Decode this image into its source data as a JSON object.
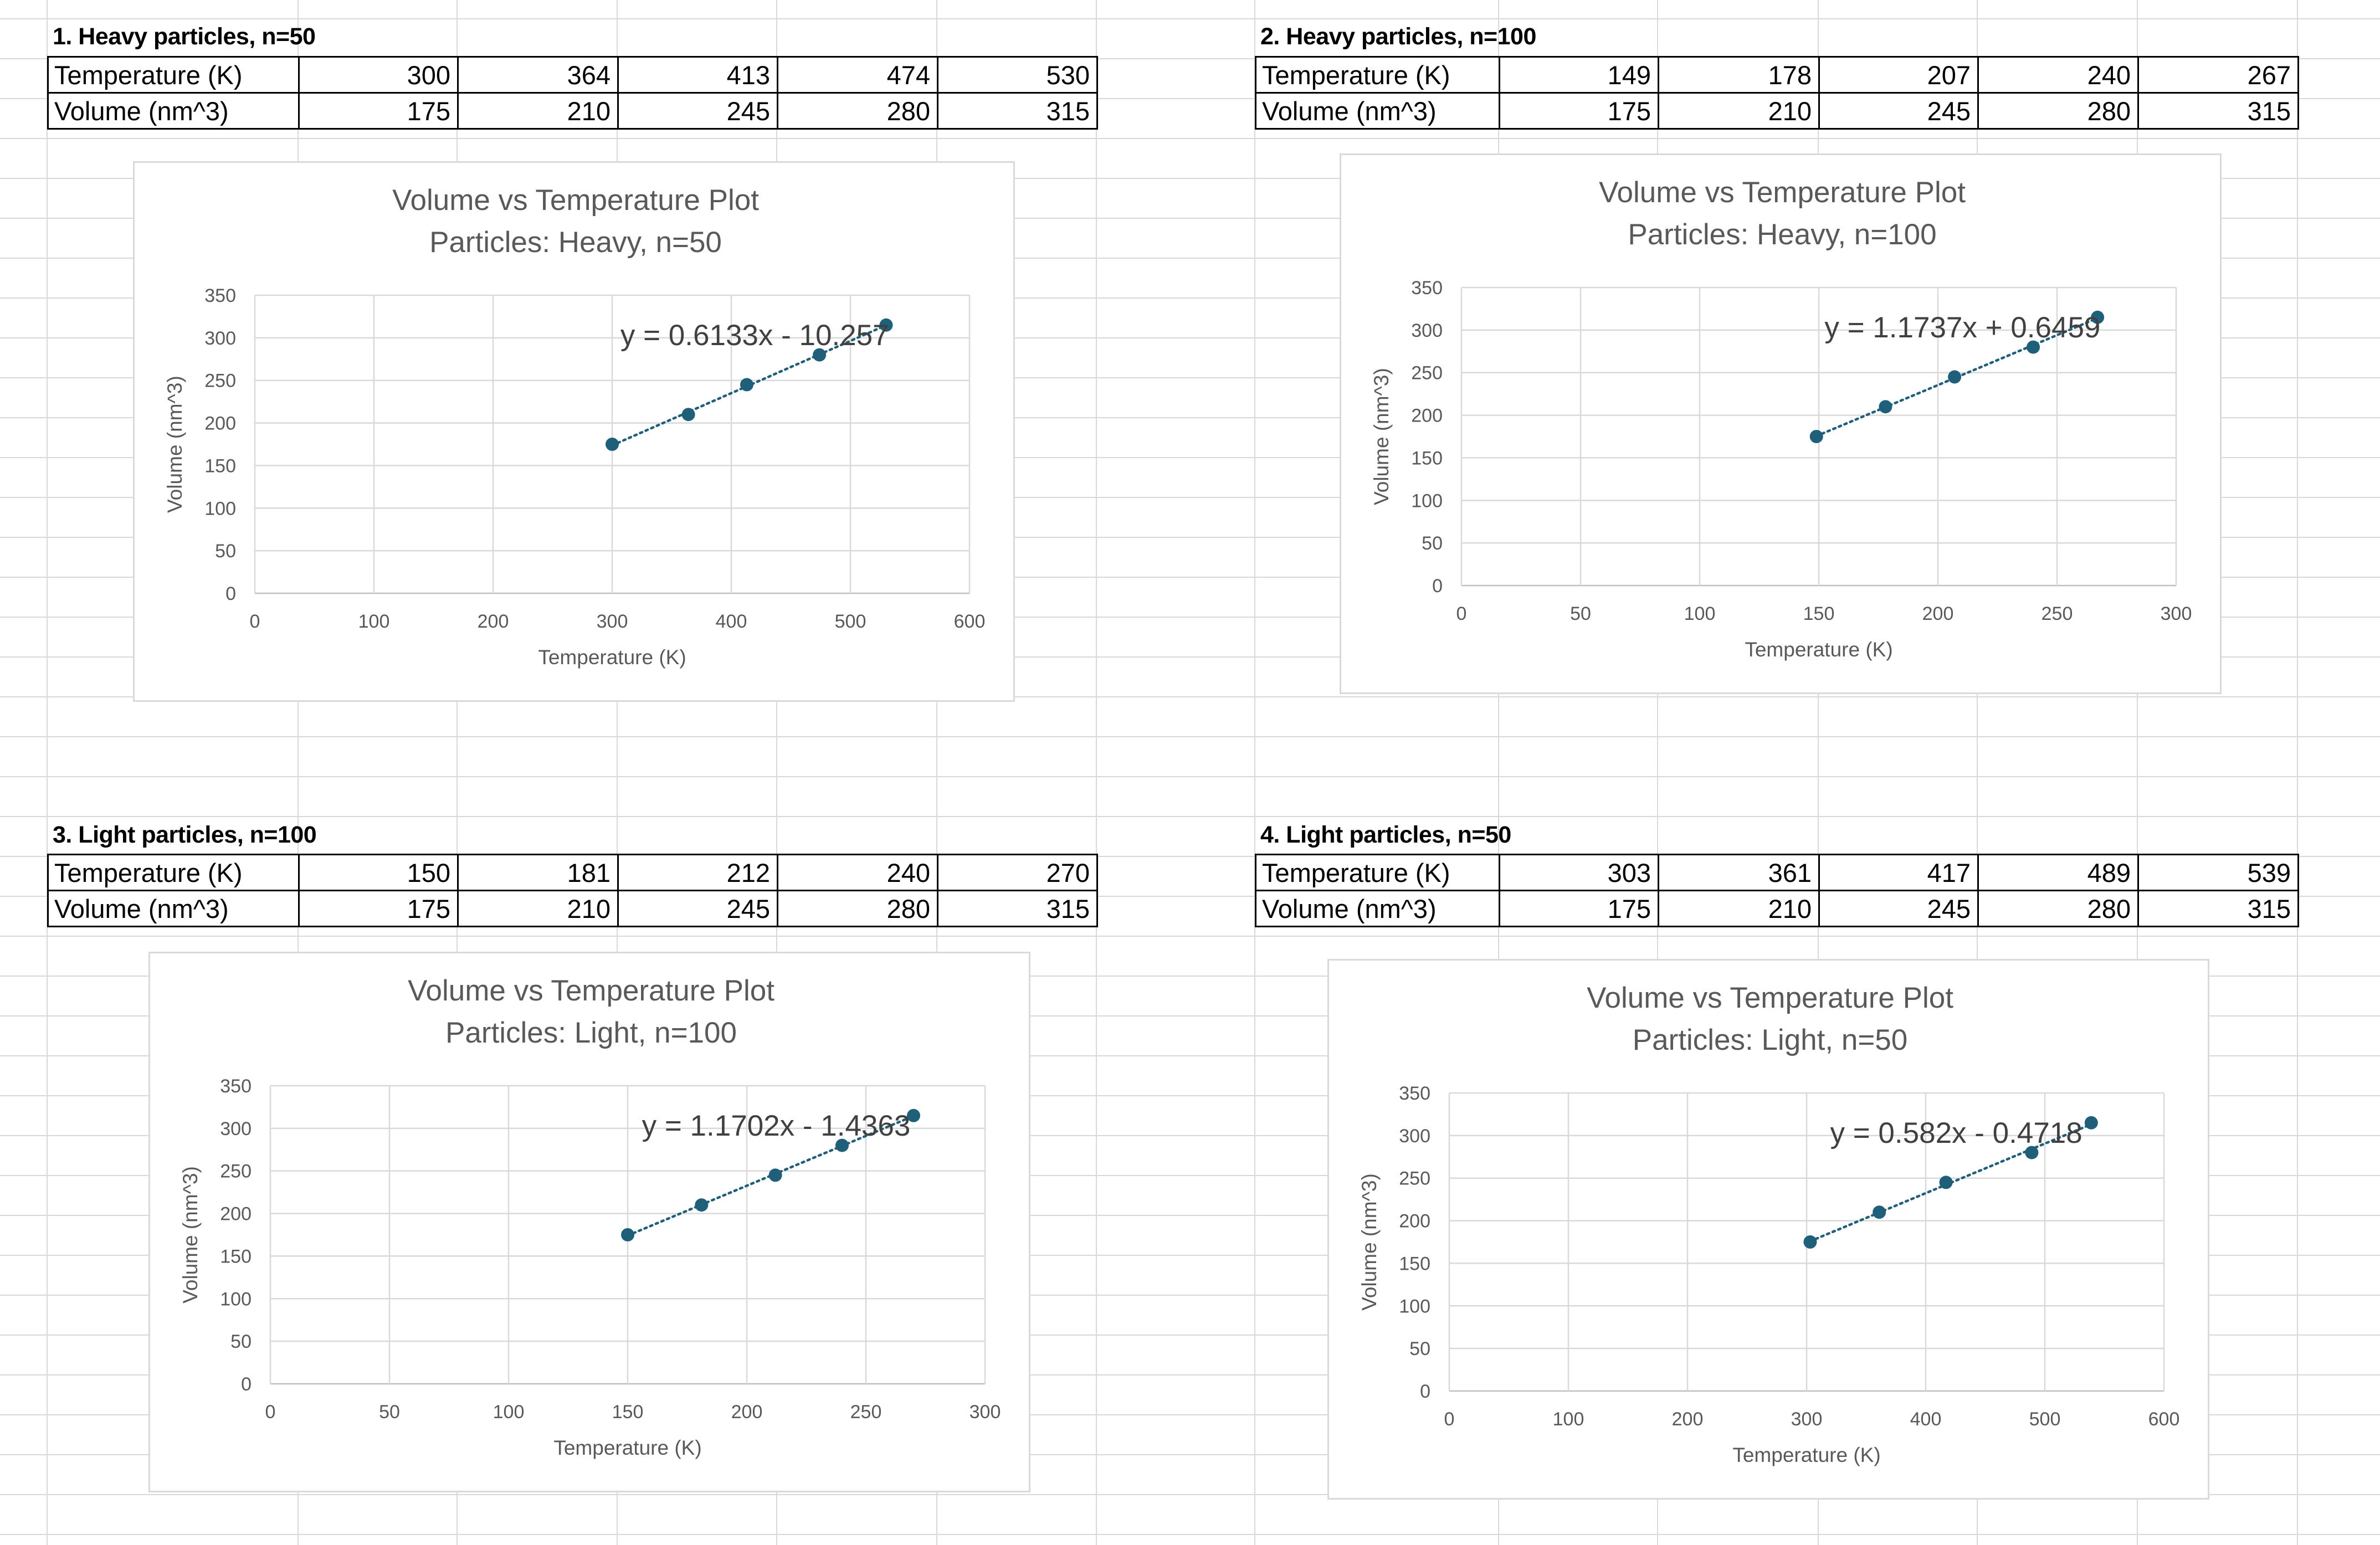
{
  "sections": [
    {
      "title": "1. Heavy particles, n=50",
      "table": {
        "rows": [
          {
            "label": "Temperature (K)",
            "values": [
              "300",
              "364",
              "413",
              "474",
              "530"
            ]
          },
          {
            "label": "Volume (nm^3)",
            "values": [
              "175",
              "210",
              "245",
              "280",
              "315"
            ]
          }
        ]
      },
      "chart_data": {
        "type": "scatter",
        "title": "Volume vs Temperature Plot",
        "subtitle": "Particles: Heavy, n=50",
        "xlabel": "Temperature (K)",
        "ylabel": "Volume (nm^3)",
        "x": [
          300,
          364,
          413,
          474,
          530
        ],
        "y": [
          175,
          210,
          245,
          280,
          315
        ],
        "xlim": [
          0,
          600
        ],
        "ylim": [
          0,
          350
        ],
        "xticks": [
          0,
          100,
          200,
          300,
          400,
          500,
          600
        ],
        "yticks": [
          0,
          50,
          100,
          150,
          200,
          250,
          300,
          350
        ],
        "grid": true,
        "trendline": {
          "type": "linear",
          "style": "dotted",
          "slope": 0.6133,
          "intercept": -10.257,
          "equation": "y = 0.6133x - 10.257"
        },
        "marker_color": "#1f5f7a"
      }
    },
    {
      "title": "2. Heavy particles, n=100",
      "table": {
        "rows": [
          {
            "label": "Temperature (K)",
            "values": [
              "149",
              "178",
              "207",
              "240",
              "267"
            ]
          },
          {
            "label": "Volume (nm^3)",
            "values": [
              "175",
              "210",
              "245",
              "280",
              "315"
            ]
          }
        ]
      },
      "chart_data": {
        "type": "scatter",
        "title": "Volume vs Temperature Plot",
        "subtitle": "Particles: Heavy, n=100",
        "xlabel": "Temperature (K)",
        "ylabel": "Volume (nm^3)",
        "x": [
          149,
          178,
          207,
          240,
          267
        ],
        "y": [
          175,
          210,
          245,
          280,
          315
        ],
        "xlim": [
          0,
          300
        ],
        "ylim": [
          0,
          350
        ],
        "xticks": [
          0,
          50,
          100,
          150,
          200,
          250,
          300
        ],
        "yticks": [
          0,
          50,
          100,
          150,
          200,
          250,
          300,
          350
        ],
        "grid": true,
        "trendline": {
          "type": "linear",
          "style": "dotted",
          "slope": 1.1737,
          "intercept": 0.6459,
          "equation": "y = 1.1737x + 0.6459"
        },
        "marker_color": "#1f5f7a"
      }
    },
    {
      "title": "3. Light particles, n=100",
      "table": {
        "rows": [
          {
            "label": "Temperature (K)",
            "values": [
              "150",
              "181",
              "212",
              "240",
              "270"
            ]
          },
          {
            "label": "Volume (nm^3)",
            "values": [
              "175",
              "210",
              "245",
              "280",
              "315"
            ]
          }
        ]
      },
      "chart_data": {
        "type": "scatter",
        "title": "Volume vs Temperature Plot",
        "subtitle": "Particles: Light, n=100",
        "xlabel": "Temperature (K)",
        "ylabel": "Volume (nm^3)",
        "x": [
          150,
          181,
          212,
          240,
          270
        ],
        "y": [
          175,
          210,
          245,
          280,
          315
        ],
        "xlim": [
          0,
          300
        ],
        "ylim": [
          0,
          350
        ],
        "xticks": [
          0,
          50,
          100,
          150,
          200,
          250,
          300
        ],
        "yticks": [
          0,
          50,
          100,
          150,
          200,
          250,
          300,
          350
        ],
        "grid": true,
        "trendline": {
          "type": "linear",
          "style": "dotted",
          "slope": 1.1702,
          "intercept": -1.4363,
          "equation": "y = 1.1702x - 1.4363"
        },
        "marker_color": "#1f5f7a"
      }
    },
    {
      "title": "4. Light particles, n=50",
      "table": {
        "rows": [
          {
            "label": "Temperature (K)",
            "values": [
              "303",
              "361",
              "417",
              "489",
              "539"
            ]
          },
          {
            "label": "Volume (nm^3)",
            "values": [
              "175",
              "210",
              "245",
              "280",
              "315"
            ]
          }
        ]
      },
      "chart_data": {
        "type": "scatter",
        "title": "Volume vs Temperature Plot",
        "subtitle": "Particles: Light, n=50",
        "xlabel": "Temperature (K)",
        "ylabel": "Volume (nm^3)",
        "x": [
          303,
          361,
          417,
          489,
          539
        ],
        "y": [
          175,
          210,
          245,
          280,
          315
        ],
        "xlim": [
          0,
          600
        ],
        "ylim": [
          0,
          350
        ],
        "xticks": [
          0,
          100,
          200,
          300,
          400,
          500,
          600
        ],
        "yticks": [
          0,
          50,
          100,
          150,
          200,
          250,
          300,
          350
        ],
        "grid": true,
        "trendline": {
          "type": "linear",
          "style": "dotted",
          "slope": 0.582,
          "intercept": -0.4718,
          "equation": "y = 0.582x - 0.4718"
        },
        "marker_color": "#1f5f7a"
      }
    }
  ]
}
